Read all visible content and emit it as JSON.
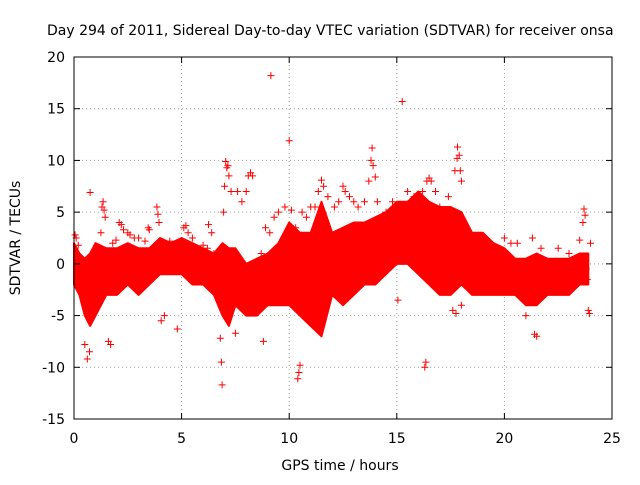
{
  "chart_data": {
    "type": "scatter",
    "title": "Day 294 of 2011, Sidereal Day-to-day VTEC variation (SDTVAR) for receiver onsa",
    "xlabel": "GPS time / hours",
    "ylabel": "SDTVAR / TECUs",
    "xlim": [
      0,
      25
    ],
    "ylim": [
      -15,
      20
    ],
    "x_ticks": [
      0,
      5,
      10,
      15,
      20,
      25
    ],
    "y_ticks": [
      -15,
      -10,
      -5,
      0,
      5,
      10,
      15,
      20
    ],
    "x_tick_labels": [
      "0",
      "5",
      "10",
      "15",
      "20",
      "25"
    ],
    "y_tick_labels": [
      "-15",
      "-10",
      "-5",
      "0",
      "5",
      "10",
      "15",
      "20"
    ],
    "grid": true,
    "marker": "+",
    "color": "#ff0000",
    "envelope": {
      "x": [
        0,
        0.25,
        0.5,
        0.75,
        1,
        1.5,
        2,
        2.5,
        3,
        3.5,
        4,
        4.5,
        5,
        5.5,
        6,
        6.5,
        6.9,
        7.2,
        7.5,
        8,
        8.5,
        9,
        9.5,
        10,
        10.5,
        11,
        11.5,
        12,
        12.5,
        13,
        13.5,
        14,
        14.5,
        15,
        15.5,
        16,
        16.5,
        17,
        17.5,
        18,
        18.5,
        19,
        19.5,
        20,
        20.5,
        21,
        21.5,
        22,
        22.5,
        23,
        23.5,
        23.9
      ],
      "upper": [
        2,
        1,
        0.5,
        1,
        2,
        1.5,
        1.5,
        2,
        1.5,
        1.5,
        2.5,
        2,
        2.5,
        2,
        1.5,
        1,
        2,
        1.5,
        1.5,
        0,
        0.5,
        1,
        2,
        4,
        3,
        3,
        6,
        3,
        3.5,
        4,
        4,
        4.5,
        5,
        6,
        6,
        7,
        6,
        5.5,
        5.5,
        5,
        3,
        3,
        2,
        1.5,
        0.5,
        0.5,
        1,
        0.5,
        0.5,
        0.5,
        1,
        1
      ],
      "lower": [
        -2,
        -3,
        -5,
        -6,
        -5,
        -3,
        -3,
        -2,
        -3,
        -2,
        -1,
        -1,
        -1,
        -2,
        -2,
        -3,
        -5,
        -6,
        -4,
        -5,
        -5,
        -4,
        -4,
        -4,
        -5,
        -6,
        -7,
        -3,
        -4,
        -3,
        -2,
        -2,
        -1,
        0,
        0,
        -1,
        -2,
        -3,
        -3,
        -2,
        -3,
        -3,
        -3,
        -3,
        -3,
        -4,
        -4,
        -3,
        -3,
        -3,
        -2,
        -2
      ]
    },
    "points": [
      [
        0.05,
        2.8
      ],
      [
        0.1,
        2.5
      ],
      [
        0.2,
        1.8
      ],
      [
        0.35,
        -1.5
      ],
      [
        0.5,
        -7.8
      ],
      [
        0.62,
        -9.2
      ],
      [
        0.72,
        -8.5
      ],
      [
        0.75,
        6.9
      ],
      [
        0.85,
        -3.8
      ],
      [
        0.95,
        -0.5
      ],
      [
        1.1,
        0.2
      ],
      [
        1.25,
        3
      ],
      [
        1.3,
        5.5
      ],
      [
        1.35,
        6
      ],
      [
        1.4,
        5.2
      ],
      [
        1.45,
        4.5
      ],
      [
        1.6,
        -7.5
      ],
      [
        1.7,
        -7.8
      ],
      [
        1.8,
        2
      ],
      [
        1.95,
        2.3
      ],
      [
        2.1,
        4
      ],
      [
        2.2,
        3.8
      ],
      [
        2.3,
        3.3
      ],
      [
        2.5,
        3
      ],
      [
        2.6,
        2.8
      ],
      [
        2.8,
        2.5
      ],
      [
        3.0,
        2.5
      ],
      [
        3.3,
        2.2
      ],
      [
        3.45,
        3.5
      ],
      [
        3.5,
        3.3
      ],
      [
        3.85,
        5.5
      ],
      [
        3.9,
        4.8
      ],
      [
        3.95,
        4
      ],
      [
        4.05,
        -5.5
      ],
      [
        4.2,
        -5
      ],
      [
        4.45,
        2.2
      ],
      [
        4.8,
        -6.3
      ],
      [
        5.1,
        3.5
      ],
      [
        5.2,
        3.7
      ],
      [
        5.3,
        3
      ],
      [
        5.5,
        2.5
      ],
      [
        6.0,
        1.8
      ],
      [
        6.2,
        1.5
      ],
      [
        6.25,
        3.8
      ],
      [
        6.4,
        3
      ],
      [
        6.5,
        1
      ],
      [
        6.75,
        -3.5
      ],
      [
        6.8,
        -7.2
      ],
      [
        6.85,
        -9.5
      ],
      [
        6.88,
        -11.7
      ],
      [
        6.95,
        5
      ],
      [
        7.0,
        7.5
      ],
      [
        7.05,
        9.9
      ],
      [
        7.1,
        9.3
      ],
      [
        7.15,
        9.5
      ],
      [
        7.2,
        8.5
      ],
      [
        7.3,
        7
      ],
      [
        7.5,
        -6.7
      ],
      [
        7.6,
        7
      ],
      [
        7.8,
        6
      ],
      [
        8.0,
        7
      ],
      [
        8.1,
        8.5
      ],
      [
        8.2,
        8.8
      ],
      [
        8.3,
        8.5
      ],
      [
        8.7,
        1
      ],
      [
        8.8,
        -7.5
      ],
      [
        8.9,
        3.5
      ],
      [
        9.1,
        3
      ],
      [
        9.15,
        18.2
      ],
      [
        9.3,
        4.5
      ],
      [
        9.5,
        5
      ],
      [
        9.8,
        5.5
      ],
      [
        10.0,
        11.9
      ],
      [
        10.1,
        5.2
      ],
      [
        10.3,
        3.5
      ],
      [
        10.4,
        -11.1
      ],
      [
        10.45,
        -10.5
      ],
      [
        10.5,
        -9.8
      ],
      [
        10.6,
        5
      ],
      [
        10.8,
        4.5
      ],
      [
        11.0,
        5.5
      ],
      [
        11.2,
        5.5
      ],
      [
        11.35,
        7
      ],
      [
        11.5,
        8.1
      ],
      [
        11.6,
        7.5
      ],
      [
        11.8,
        6.5
      ],
      [
        12.1,
        5.5
      ],
      [
        12.3,
        6
      ],
      [
        12.5,
        7.5
      ],
      [
        12.6,
        7
      ],
      [
        12.8,
        6.5
      ],
      [
        13.0,
        6
      ],
      [
        13.2,
        5.5
      ],
      [
        13.5,
        6
      ],
      [
        13.7,
        8
      ],
      [
        13.8,
        10
      ],
      [
        13.85,
        11.2
      ],
      [
        13.9,
        9.5
      ],
      [
        14.0,
        8.4
      ],
      [
        14.1,
        6
      ],
      [
        14.5,
        5
      ],
      [
        14.8,
        6
      ],
      [
        15.05,
        -3.5
      ],
      [
        15.25,
        15.7
      ],
      [
        15.5,
        7
      ],
      [
        15.8,
        6.5
      ],
      [
        16.2,
        7
      ],
      [
        16.3,
        -10
      ],
      [
        16.35,
        -9.5
      ],
      [
        16.4,
        8
      ],
      [
        16.5,
        8.3
      ],
      [
        16.6,
        8
      ],
      [
        16.8,
        7
      ],
      [
        17.0,
        5.5
      ],
      [
        17.4,
        6.5
      ],
      [
        17.7,
        9
      ],
      [
        17.8,
        10.2
      ],
      [
        17.82,
        11.3
      ],
      [
        17.9,
        10.5
      ],
      [
        17.95,
        9
      ],
      [
        18.0,
        8
      ],
      [
        17.6,
        -4.5
      ],
      [
        17.75,
        -4.8
      ],
      [
        18.0,
        -4
      ],
      [
        18.3,
        -2
      ],
      [
        18.8,
        2.5
      ],
      [
        19.5,
        1.5
      ],
      [
        20.0,
        2.5
      ],
      [
        20.3,
        2
      ],
      [
        20.6,
        2
      ],
      [
        21.0,
        -5
      ],
      [
        21.3,
        2.5
      ],
      [
        21.4,
        -6.8
      ],
      [
        21.5,
        -7
      ],
      [
        21.7,
        1.5
      ],
      [
        22.5,
        1.5
      ],
      [
        23.0,
        1
      ],
      [
        23.5,
        2.3
      ],
      [
        23.65,
        4
      ],
      [
        23.7,
        5.3
      ],
      [
        23.75,
        4.7
      ],
      [
        23.8,
        -0.5
      ],
      [
        23.85,
        -1.5
      ],
      [
        23.9,
        -4.5
      ],
      [
        23.95,
        -4.8
      ],
      [
        24.0,
        2
      ]
    ]
  }
}
